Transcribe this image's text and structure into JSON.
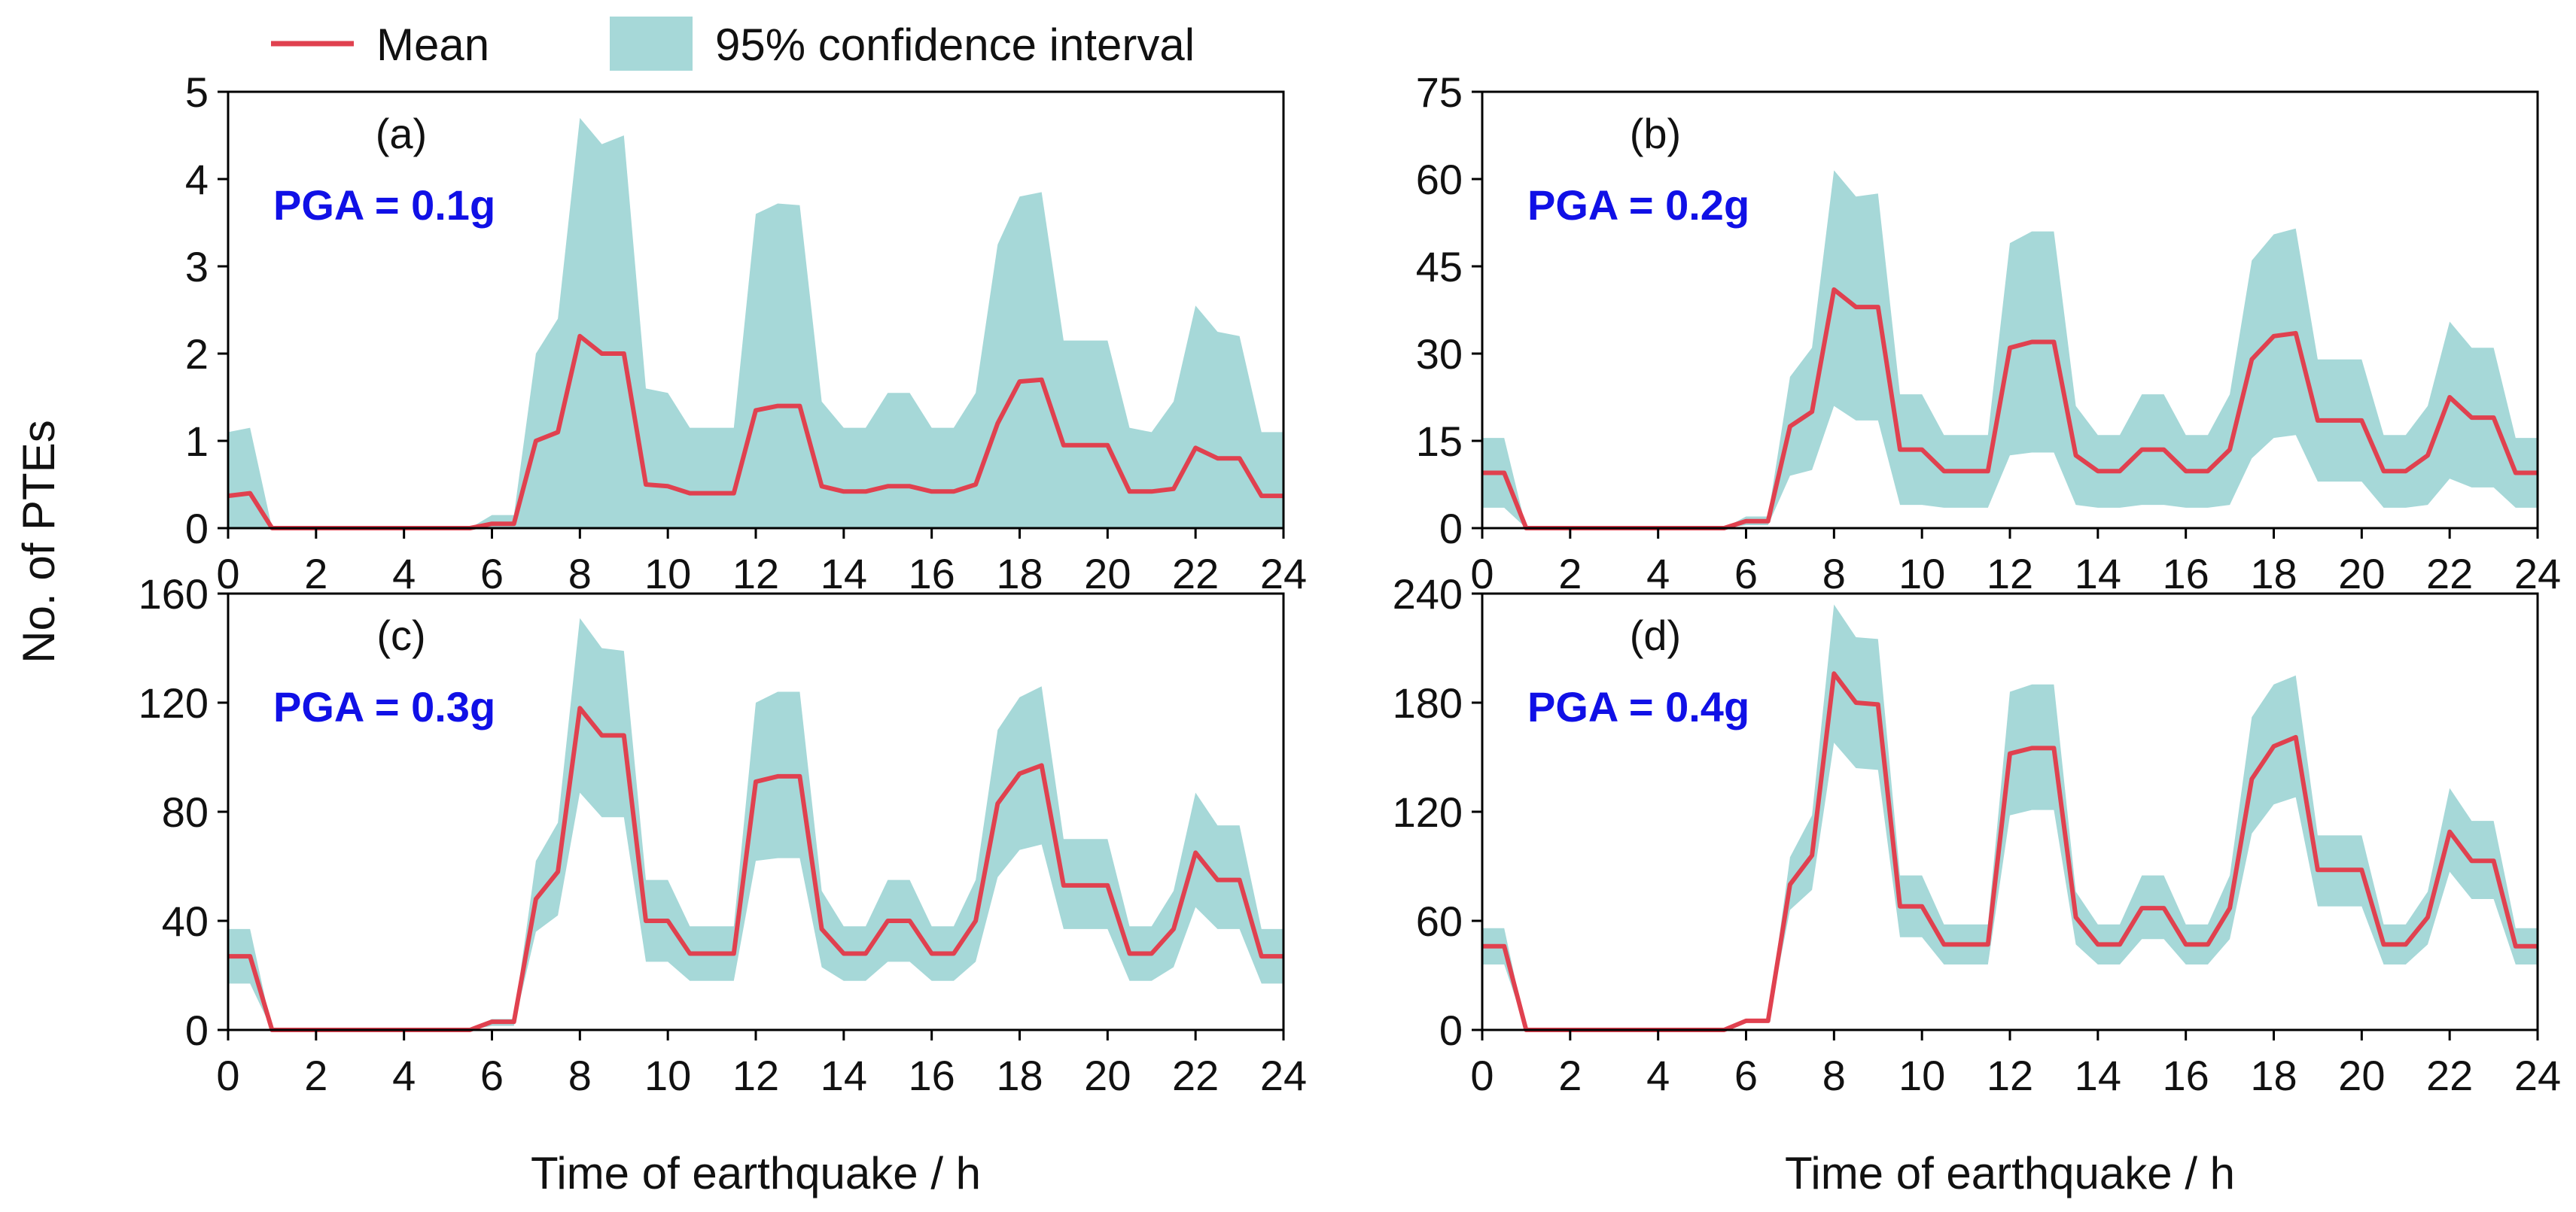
{
  "legend": {
    "mean_label": "Mean",
    "ci_label": "95% confidence interval"
  },
  "colors": {
    "mean": "#e0414f",
    "ci": "#a6d8d8",
    "pga_text": "#1010e6",
    "axis": "#000000"
  },
  "shared": {
    "ylabel": "No. of PTEs",
    "xlabel": "Time of earthquake / h",
    "x_ticks": [
      0,
      2,
      4,
      6,
      8,
      10,
      12,
      14,
      16,
      18,
      20,
      22,
      24
    ],
    "x_tick_labels": [
      "0",
      "2",
      "4",
      "6",
      "8",
      "10",
      "12",
      "14",
      "16",
      "18",
      "20",
      "22",
      "24"
    ]
  },
  "chart_data": [
    {
      "type": "line",
      "panel": "(a)",
      "annotation": "PGA = 0.1g",
      "x": [
        0,
        0.5,
        1,
        1.5,
        2,
        2.5,
        3,
        3.5,
        4,
        4.5,
        5,
        5.5,
        6,
        6.5,
        7,
        7.5,
        8,
        8.5,
        9,
        9.5,
        10,
        10.5,
        11,
        11.5,
        12,
        12.5,
        13,
        13.5,
        14,
        14.5,
        15,
        15.5,
        16,
        16.5,
        17,
        17.5,
        18,
        18.5,
        19,
        19.5,
        20,
        20.5,
        21,
        21.5,
        22,
        22.5,
        23,
        23.5,
        24
      ],
      "series": [
        {
          "name": "Mean",
          "values": [
            0.37,
            0.4,
            0,
            0,
            0,
            0,
            0,
            0,
            0,
            0,
            0,
            0,
            0.05,
            0.05,
            1.0,
            1.1,
            2.2,
            2.0,
            2.0,
            0.5,
            0.48,
            0.4,
            0.4,
            0.4,
            1.35,
            1.4,
            1.4,
            0.48,
            0.42,
            0.42,
            0.48,
            0.48,
            0.42,
            0.42,
            0.5,
            1.2,
            1.68,
            1.7,
            0.95,
            0.95,
            0.95,
            0.42,
            0.42,
            0.45,
            0.92,
            0.8,
            0.8,
            0.37,
            0.37
          ]
        },
        {
          "name": "95% confidence interval upper",
          "values": [
            1.1,
            1.15,
            0,
            0,
            0,
            0,
            0,
            0,
            0,
            0,
            0,
            0,
            0.15,
            0.15,
            2.0,
            2.4,
            4.7,
            4.4,
            4.5,
            1.6,
            1.55,
            1.15,
            1.15,
            1.15,
            3.6,
            3.72,
            3.7,
            1.45,
            1.15,
            1.15,
            1.55,
            1.55,
            1.15,
            1.15,
            1.55,
            3.25,
            3.8,
            3.85,
            2.15,
            2.15,
            2.15,
            1.15,
            1.1,
            1.45,
            2.55,
            2.25,
            2.2,
            1.1,
            1.1
          ]
        },
        {
          "name": "95% confidence interval lower",
          "values": [
            0,
            0,
            0,
            0,
            0,
            0,
            0,
            0,
            0,
            0,
            0,
            0,
            0,
            0,
            0,
            0,
            0,
            0,
            0,
            0,
            0,
            0,
            0,
            0,
            0,
            0,
            0,
            0,
            0,
            0,
            0,
            0,
            0,
            0,
            0,
            0,
            0,
            0,
            0,
            0,
            0,
            0,
            0,
            0,
            0,
            0,
            0,
            0,
            0
          ]
        }
      ],
      "ylim": [
        0,
        5
      ],
      "y_ticks": [
        0,
        1,
        2,
        3,
        4,
        5
      ],
      "xlim": [
        0,
        24
      ]
    },
    {
      "type": "line",
      "panel": "(b)",
      "annotation": "PGA = 0.2g",
      "x": [
        0,
        0.5,
        1,
        1.5,
        2,
        2.5,
        3,
        3.5,
        4,
        4.5,
        5,
        5.5,
        6,
        6.5,
        7,
        7.5,
        8,
        8.5,
        9,
        9.5,
        10,
        10.5,
        11,
        11.5,
        12,
        12.5,
        13,
        13.5,
        14,
        14.5,
        15,
        15.5,
        16,
        16.5,
        17,
        17.5,
        18,
        18.5,
        19,
        19.5,
        20,
        20.5,
        21,
        21.5,
        22,
        22.5,
        23,
        23.5,
        24
      ],
      "series": [
        {
          "name": "Mean",
          "values": [
            9.5,
            9.5,
            0,
            0,
            0,
            0,
            0,
            0,
            0,
            0,
            0,
            0,
            1.2,
            1.2,
            17.5,
            20,
            41,
            38,
            38,
            13.5,
            13.5,
            9.8,
            9.8,
            9.8,
            31,
            32,
            32,
            12.5,
            9.8,
            9.8,
            13.5,
            13.5,
            9.8,
            9.8,
            13.5,
            29,
            33,
            33.5,
            18.5,
            18.5,
            18.5,
            9.8,
            9.8,
            12.5,
            22.5,
            19,
            19,
            9.5,
            9.5
          ]
        },
        {
          "name": "95% confidence interval upper",
          "values": [
            15.5,
            15.5,
            0,
            0,
            0,
            0,
            0,
            0,
            0,
            0,
            0,
            0,
            2.0,
            2.0,
            26,
            31,
            61.5,
            57,
            57.5,
            23,
            23,
            16,
            16,
            16,
            49,
            51,
            51,
            21,
            16,
            16,
            23,
            23,
            16,
            16,
            23,
            46,
            50.5,
            51.5,
            29,
            29,
            29,
            16,
            16,
            21,
            35.5,
            31,
            31,
            15.5,
            15.5
          ]
        },
        {
          "name": "95% confidence interval lower",
          "values": [
            3.5,
            3.5,
            0,
            0,
            0,
            0,
            0,
            0,
            0,
            0,
            0,
            0,
            0.5,
            0.5,
            9,
            10,
            21,
            18.5,
            18.5,
            4,
            4,
            3.5,
            3.5,
            3.5,
            12.5,
            13,
            13,
            4,
            3.5,
            3.5,
            4,
            4,
            3.5,
            3.5,
            4,
            12,
            15.5,
            16,
            8,
            8,
            8,
            3.5,
            3.5,
            4,
            8.5,
            7,
            7,
            3.5,
            3.5
          ]
        }
      ],
      "ylim": [
        0,
        75
      ],
      "y_ticks": [
        0,
        15,
        30,
        45,
        60,
        75
      ],
      "xlim": [
        0,
        24
      ]
    },
    {
      "type": "line",
      "panel": "(c)",
      "annotation": "PGA = 0.3g",
      "x": [
        0,
        0.5,
        1,
        1.5,
        2,
        2.5,
        3,
        3.5,
        4,
        4.5,
        5,
        5.5,
        6,
        6.5,
        7,
        7.5,
        8,
        8.5,
        9,
        9.5,
        10,
        10.5,
        11,
        11.5,
        12,
        12.5,
        13,
        13.5,
        14,
        14.5,
        15,
        15.5,
        16,
        16.5,
        17,
        17.5,
        18,
        18.5,
        19,
        19.5,
        20,
        20.5,
        21,
        21.5,
        22,
        22.5,
        23,
        23.5,
        24
      ],
      "series": [
        {
          "name": "Mean",
          "values": [
            27,
            27,
            0,
            0,
            0,
            0,
            0,
            0,
            0,
            0,
            0,
            0,
            3,
            3,
            48,
            58,
            118,
            108,
            108,
            40,
            40,
            28,
            28,
            28,
            91,
            93,
            93,
            37,
            28,
            28,
            40,
            40,
            28,
            28,
            40,
            83,
            94,
            97,
            53,
            53,
            53,
            28,
            28,
            37,
            65,
            55,
            55,
            27,
            27
          ]
        },
        {
          "name": "95% confidence interval upper",
          "values": [
            37,
            37,
            0,
            0,
            0,
            0,
            0,
            0,
            0,
            0,
            0,
            0,
            4,
            4,
            62,
            76,
            151,
            140,
            139,
            55,
            55,
            38,
            38,
            38,
            120,
            124,
            124,
            51,
            38,
            38,
            55,
            55,
            38,
            38,
            55,
            110,
            122,
            126,
            70,
            70,
            70,
            38,
            38,
            51,
            87,
            75,
            75,
            37,
            37
          ]
        },
        {
          "name": "95% confidence interval lower",
          "values": [
            17,
            17,
            0,
            0,
            0,
            0,
            0,
            0,
            0,
            0,
            0,
            0,
            1.5,
            1.5,
            36,
            42,
            87,
            78,
            78,
            25,
            25,
            18,
            18,
            18,
            62,
            63,
            63,
            23,
            18,
            18,
            25,
            25,
            18,
            18,
            25,
            56,
            66,
            68,
            37,
            37,
            37,
            18,
            18,
            23,
            45,
            37,
            37,
            17,
            17
          ]
        }
      ],
      "ylim": [
        0,
        160
      ],
      "y_ticks": [
        0,
        40,
        80,
        120,
        160
      ],
      "xlim": [
        0,
        24
      ]
    },
    {
      "type": "line",
      "panel": "(d)",
      "annotation": "PGA = 0.4g",
      "x": [
        0,
        0.5,
        1,
        1.5,
        2,
        2.5,
        3,
        3.5,
        4,
        4.5,
        5,
        5.5,
        6,
        6.5,
        7,
        7.5,
        8,
        8.5,
        9,
        9.5,
        10,
        10.5,
        11,
        11.5,
        12,
        12.5,
        13,
        13.5,
        14,
        14.5,
        15,
        15.5,
        16,
        16.5,
        17,
        17.5,
        18,
        18.5,
        19,
        19.5,
        20,
        20.5,
        21,
        21.5,
        22,
        22.5,
        23,
        23.5,
        24
      ],
      "series": [
        {
          "name": "Mean",
          "values": [
            46,
            46,
            0,
            0,
            0,
            0,
            0,
            0,
            0,
            0,
            0,
            0,
            5,
            5,
            80,
            96,
            196,
            180,
            179,
            68,
            68,
            47,
            47,
            47,
            152,
            155,
            155,
            62,
            47,
            47,
            67,
            67,
            47,
            47,
            67,
            138,
            156,
            161,
            88,
            88,
            88,
            47,
            47,
            62,
            109,
            93,
            93,
            46,
            46
          ]
        },
        {
          "name": "95% confidence interval upper",
          "values": [
            56,
            56,
            0,
            0,
            0,
            0,
            0,
            0,
            0,
            0,
            0,
            0,
            6,
            6,
            95,
            118,
            234,
            216,
            215,
            85,
            85,
            58,
            58,
            58,
            186,
            190,
            190,
            76,
            58,
            58,
            85,
            85,
            58,
            58,
            85,
            172,
            190,
            195,
            107,
            107,
            107,
            58,
            58,
            76,
            133,
            115,
            115,
            56,
            56
          ]
        },
        {
          "name": "95% confidence interval lower",
          "values": [
            36,
            36,
            0,
            0,
            0,
            0,
            0,
            0,
            0,
            0,
            0,
            0,
            4,
            4,
            66,
            77,
            158,
            144,
            143,
            51,
            51,
            36,
            36,
            36,
            118,
            121,
            121,
            47,
            36,
            36,
            50,
            50,
            36,
            36,
            50,
            108,
            124,
            128,
            68,
            68,
            68,
            36,
            36,
            47,
            87,
            72,
            72,
            36,
            36
          ]
        }
      ],
      "ylim": [
        0,
        240
      ],
      "y_ticks": [
        0,
        60,
        120,
        180,
        240
      ],
      "xlim": [
        0,
        24
      ]
    }
  ]
}
